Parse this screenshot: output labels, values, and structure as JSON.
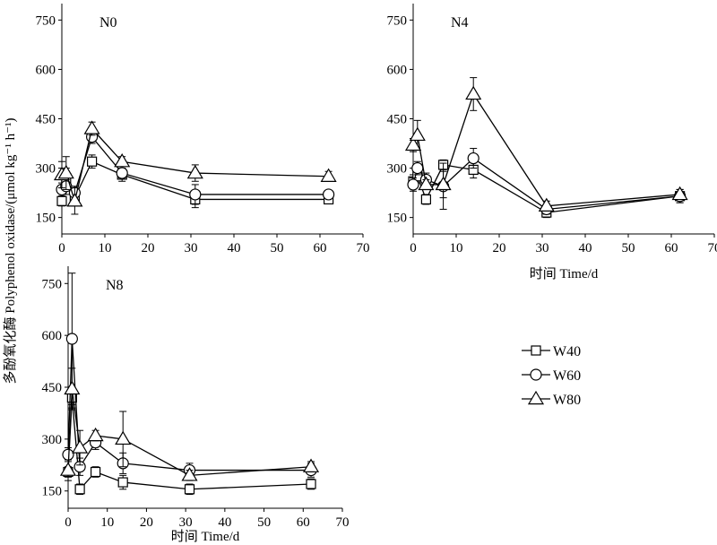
{
  "figure": {
    "ylabel": "多酚氧化酶 Polyphenol oxidase/(μmol kg⁻¹ h⁻¹)",
    "xlabel": "时间 Time/d"
  },
  "legend": [
    {
      "name": "W40",
      "marker": "square"
    },
    {
      "name": "W60",
      "marker": "circle"
    },
    {
      "name": "W80",
      "marker": "triangle"
    }
  ],
  "chart_data": [
    {
      "type": "line",
      "panel": "N0",
      "xlabel": "",
      "xlim": [
        0,
        70
      ],
      "ylim": [
        100,
        800
      ],
      "xticks": [
        0,
        10,
        20,
        30,
        40,
        50,
        60,
        70
      ],
      "yticks": [
        150,
        300,
        450,
        600,
        750
      ],
      "series": [
        {
          "name": "W40",
          "x": [
            0,
            1,
            3,
            7,
            14,
            31,
            62
          ],
          "y": [
            200,
            270,
            210,
            320,
            280,
            205,
            205
          ],
          "err": [
            15,
            30,
            20,
            20,
            20,
            25,
            10
          ]
        },
        {
          "name": "W60",
          "x": [
            0,
            1,
            3,
            7,
            14,
            31,
            62
          ],
          "y": [
            235,
            245,
            225,
            395,
            285,
            220,
            220
          ],
          "err": [
            20,
            25,
            20,
            20,
            15,
            30,
            10
          ]
        },
        {
          "name": "W80",
          "x": [
            0,
            1,
            3,
            7,
            14,
            31,
            62
          ],
          "y": [
            280,
            285,
            200,
            420,
            320,
            285,
            275
          ],
          "err": [
            40,
            50,
            40,
            20,
            15,
            25,
            15
          ]
        }
      ]
    },
    {
      "type": "line",
      "panel": "N4",
      "xlabel": "时间 Time/d",
      "xlim": [
        0,
        70
      ],
      "ylim": [
        100,
        800
      ],
      "xticks": [
        0,
        10,
        20,
        30,
        40,
        50,
        60,
        70
      ],
      "yticks": [
        150,
        300,
        450,
        600,
        750
      ],
      "series": [
        {
          "name": "W40",
          "x": [
            0,
            1,
            3,
            7,
            14,
            31,
            62
          ],
          "y": [
            260,
            275,
            205,
            310,
            295,
            165,
            215
          ],
          "err": [
            20,
            20,
            15,
            15,
            25,
            15,
            20
          ]
        },
        {
          "name": "W60",
          "x": [
            0,
            1,
            3,
            7,
            14,
            31,
            62
          ],
          "y": [
            250,
            300,
            265,
            245,
            330,
            175,
            215
          ],
          "err": [
            20,
            20,
            20,
            70,
            30,
            15,
            20
          ]
        },
        {
          "name": "W80",
          "x": [
            0,
            1,
            3,
            7,
            14,
            31,
            62
          ],
          "y": [
            370,
            400,
            250,
            250,
            525,
            185,
            220
          ],
          "err": [
            20,
            45,
            15,
            40,
            50,
            15,
            15
          ]
        }
      ]
    },
    {
      "type": "line",
      "panel": "N8",
      "xlabel": "时间 Time/d",
      "xlim": [
        0,
        70
      ],
      "ylim": [
        100,
        800
      ],
      "xticks": [
        0,
        10,
        20,
        30,
        40,
        50,
        60,
        70
      ],
      "yticks": [
        150,
        300,
        450,
        600,
        750
      ],
      "series": [
        {
          "name": "W40",
          "x": [
            0,
            1,
            3,
            7,
            14,
            31,
            62
          ],
          "y": [
            205,
            420,
            155,
            205,
            175,
            155,
            170
          ],
          "err": [
            15,
            30,
            15,
            15,
            20,
            15,
            15
          ]
        },
        {
          "name": "W60",
          "x": [
            0,
            1,
            3,
            7,
            14,
            31,
            62
          ],
          "y": [
            255,
            590,
            220,
            290,
            230,
            210,
            210
          ],
          "err": [
            20,
            190,
            25,
            20,
            30,
            20,
            20
          ]
        },
        {
          "name": "W80",
          "x": [
            0,
            1,
            3,
            7,
            14,
            31,
            62
          ],
          "y": [
            210,
            445,
            275,
            310,
            300,
            195,
            220
          ],
          "err": [
            30,
            60,
            50,
            15,
            80,
            15,
            15
          ]
        }
      ]
    }
  ]
}
